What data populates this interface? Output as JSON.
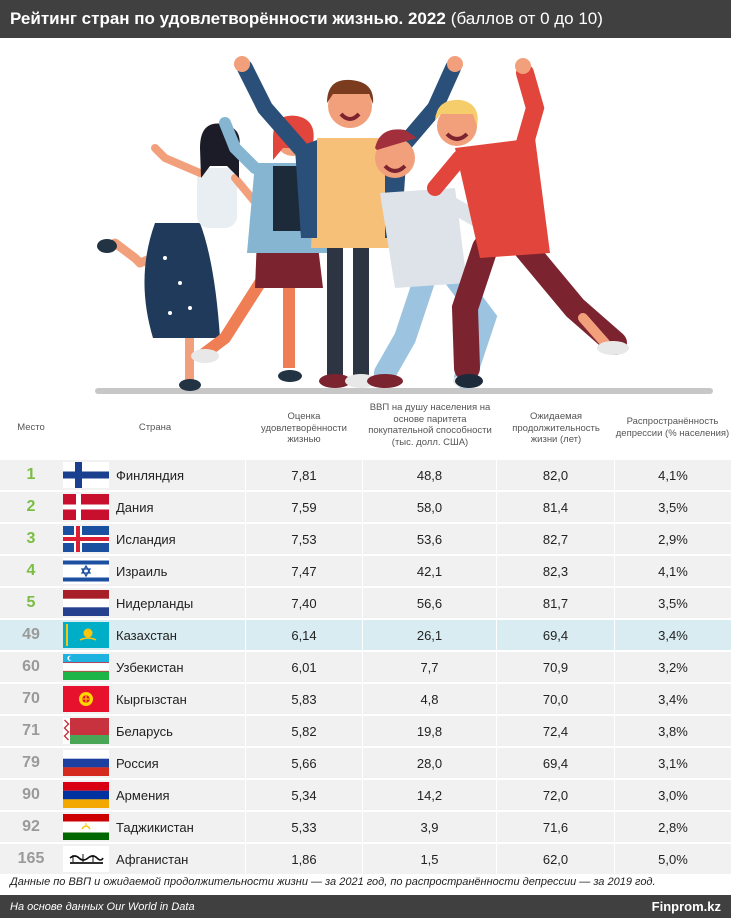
{
  "header": {
    "title": "Рейтинг стран по удовлетворённости жизнью. 2022",
    "subtitle": "(баллов от 0 до 10)"
  },
  "columns": {
    "rank": "Место",
    "country": "Страна",
    "life": "Оценка удовлетворённости жизнью",
    "gdp": "ВВП на душу населения на основе паритета покупательной способности (тыс. долл. США)",
    "exp": "Ожидаемая продолжительность жизни (лет)",
    "dep": "Распространённость депрессии (% населения)"
  },
  "chart_data": {
    "type": "table",
    "highlight": "Казахстан",
    "rows": [
      {
        "rank": "1",
        "country": "Финляндия",
        "flag": "finland",
        "life": "7,81",
        "gdp": "48,8",
        "exp": "82,0",
        "dep": "4,1%"
      },
      {
        "rank": "2",
        "country": "Дания",
        "flag": "denmark",
        "life": "7,59",
        "gdp": "58,0",
        "exp": "81,4",
        "dep": "3,5%"
      },
      {
        "rank": "3",
        "country": "Исландия",
        "flag": "iceland",
        "life": "7,53",
        "gdp": "53,6",
        "exp": "82,7",
        "dep": "2,9%"
      },
      {
        "rank": "4",
        "country": "Израиль",
        "flag": "israel",
        "life": "7,47",
        "gdp": "42,1",
        "exp": "82,3",
        "dep": "4,1%"
      },
      {
        "rank": "5",
        "country": "Нидерланды",
        "flag": "netherlands",
        "life": "7,40",
        "gdp": "56,6",
        "exp": "81,7",
        "dep": "3,5%"
      },
      {
        "rank": "49",
        "country": "Казахстан",
        "flag": "kazakhstan",
        "life": "6,14",
        "gdp": "26,1",
        "exp": "69,4",
        "dep": "3,4%"
      },
      {
        "rank": "60",
        "country": "Узбекистан",
        "flag": "uzbekistan",
        "life": "6,01",
        "gdp": "7,7",
        "exp": "70,9",
        "dep": "3,2%"
      },
      {
        "rank": "70",
        "country": "Кыргызстан",
        "flag": "kyrgyzstan",
        "life": "5,83",
        "gdp": "4,8",
        "exp": "70,0",
        "dep": "3,4%"
      },
      {
        "rank": "71",
        "country": "Беларусь",
        "flag": "belarus",
        "life": "5,82",
        "gdp": "19,8",
        "exp": "72,4",
        "dep": "3,8%"
      },
      {
        "rank": "79",
        "country": "Россия",
        "flag": "russia",
        "life": "5,66",
        "gdp": "28,0",
        "exp": "69,4",
        "dep": "3,1%"
      },
      {
        "rank": "90",
        "country": "Армения",
        "flag": "armenia",
        "life": "5,34",
        "gdp": "14,2",
        "exp": "72,0",
        "dep": "3,0%"
      },
      {
        "rank": "92",
        "country": "Таджикистан",
        "flag": "tajikistan",
        "life": "5,33",
        "gdp": "3,9",
        "exp": "71,6",
        "dep": "2,8%"
      },
      {
        "rank": "165",
        "country": "Афганистан",
        "flag": "afghanistan",
        "life": "1,86",
        "gdp": "1,5",
        "exp": "62,0",
        "dep": "5,0%"
      }
    ]
  },
  "colors": {
    "rank_top": "#7bbd42",
    "rank_other": "#9a9a9a",
    "highlight_row": "#d9ecf2",
    "row_bg": "#f1f1f1",
    "header_bg": "#404040"
  },
  "note": "Данные по ВВП и ожидаемой продолжительности жизни — за 2021 год, по распространённости депрессии — за 2019 год.",
  "footer": {
    "source": "На основе данных Our World in Data",
    "brand": "Finprom.kz"
  }
}
